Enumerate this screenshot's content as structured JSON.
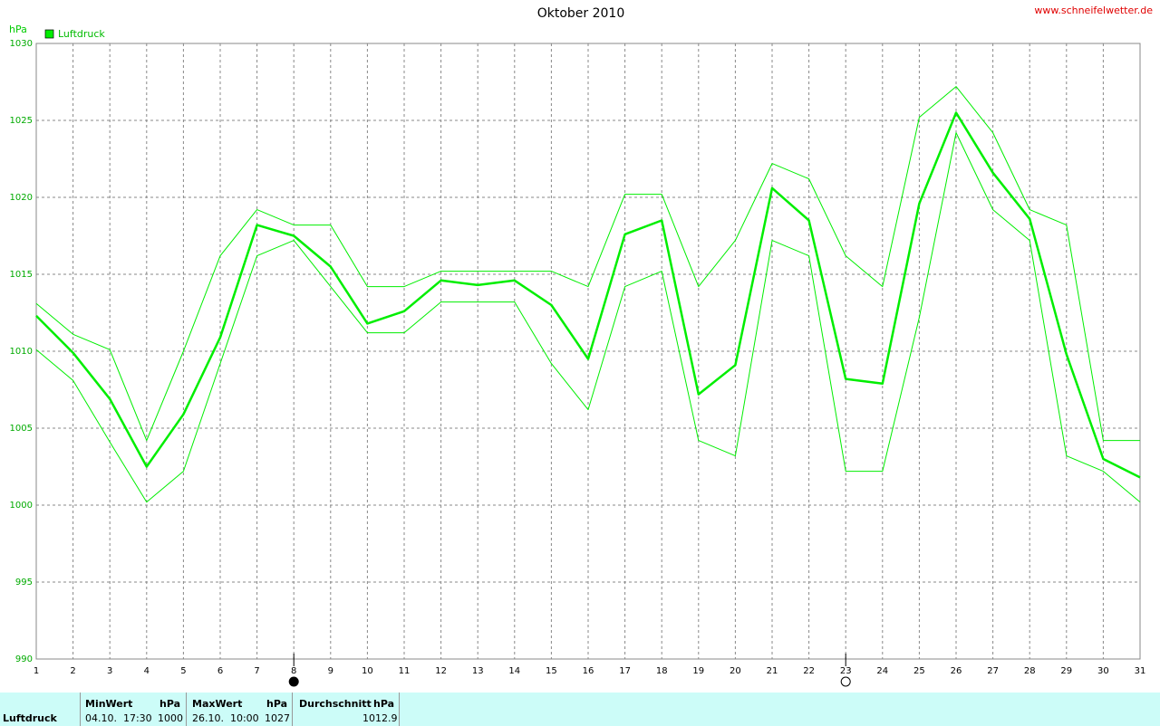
{
  "chart_data": {
    "type": "line",
    "title": "Oktober 2010",
    "source": "www.schneifelwetter.de",
    "y_label": "hPa",
    "x": [
      1,
      2,
      3,
      4,
      5,
      6,
      7,
      8,
      9,
      10,
      11,
      12,
      13,
      14,
      15,
      16,
      17,
      18,
      19,
      20,
      21,
      22,
      23,
      24,
      25,
      26,
      27,
      28,
      29,
      30,
      31
    ],
    "series": [
      {
        "name": "Luftdruck",
        "color": "#00ee00",
        "width": 2.5,
        "values": [
          1012.3,
          1009.9,
          1006.9,
          1002.5,
          1005.9,
          1010.9,
          1018.2,
          1017.5,
          1015.5,
          1011.8,
          1012.6,
          1014.6,
          1014.3,
          1014.6,
          1013.0,
          1009.5,
          1017.6,
          1018.5,
          1007.2,
          1009.1,
          1020.6,
          1018.5,
          1008.2,
          1007.9,
          1019.6,
          1025.5,
          1021.6,
          1018.6,
          1009.8,
          1003.0,
          1001.8
        ]
      },
      {
        "color": "#00ee00",
        "width": 1,
        "values": [
          1013.1,
          1011.1,
          1010.1,
          1004.2,
          1010.0,
          1016.2,
          1019.2,
          1018.2,
          1018.2,
          1014.2,
          1014.2,
          1015.2,
          1015.2,
          1015.2,
          1015.2,
          1014.2,
          1020.2,
          1020.2,
          1014.2,
          1017.2,
          1022.2,
          1021.2,
          1016.2,
          1014.2,
          1025.2,
          1027.2,
          1024.2,
          1019.2,
          1018.2,
          1004.2,
          1004.2
        ]
      },
      {
        "color": "#00ee00",
        "width": 1,
        "values": [
          1010.1,
          1008.1,
          1004.1,
          1000.2,
          1002.2,
          1009.2,
          1016.2,
          1017.2,
          1014.2,
          1011.2,
          1011.2,
          1013.2,
          1013.2,
          1013.2,
          1009.2,
          1006.2,
          1014.2,
          1015.2,
          1004.2,
          1003.2,
          1017.2,
          1016.2,
          1002.2,
          1002.2,
          1012.2,
          1024.2,
          1019.2,
          1017.2,
          1003.2,
          1002.2,
          1000.2
        ]
      }
    ],
    "xlim": [
      1,
      31
    ],
    "xticks": [
      1,
      2,
      3,
      4,
      5,
      6,
      7,
      8,
      9,
      10,
      11,
      12,
      13,
      14,
      15,
      16,
      17,
      18,
      19,
      20,
      21,
      22,
      23,
      24,
      25,
      26,
      27,
      28,
      29,
      30,
      31
    ],
    "ylim": [
      990,
      1030
    ],
    "yticks": [
      990,
      995,
      1000,
      1005,
      1010,
      1015,
      1020,
      1025,
      1030
    ],
    "grid": true,
    "moon_markers": [
      {
        "x": 8,
        "filled": true
      },
      {
        "x": 23,
        "filled": false
      }
    ]
  },
  "summary": {
    "label": "Luftdruck",
    "min_header": "MinWert",
    "min_unit": "hPa",
    "min_time": "04.10.  17:30",
    "min_value": "1000",
    "max_header": "MaxWert",
    "max_unit": "hPa",
    "max_time": "26.10.  10:00",
    "max_value": "1027",
    "avg_header": "Durchschnitt",
    "avg_unit": "hPa",
    "avg_value": "1012.9"
  }
}
